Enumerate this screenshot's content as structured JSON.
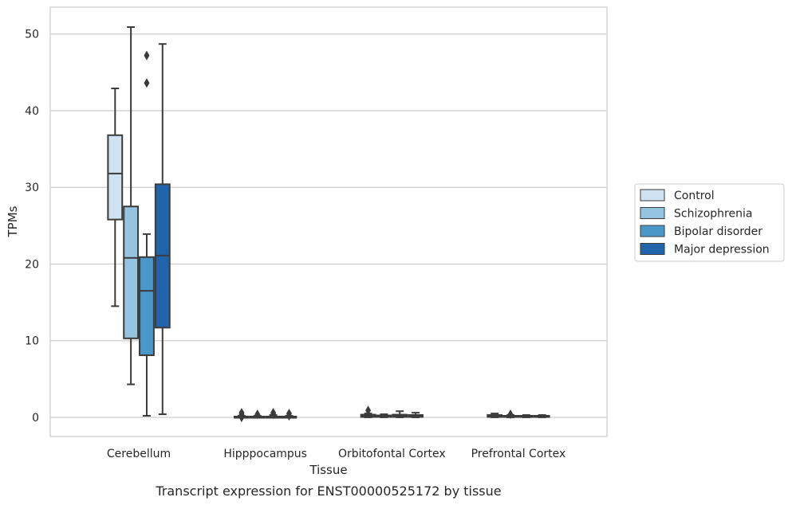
{
  "chart_data": {
    "type": "box",
    "caption": "Transcript expression for ENST00000525172 by tissue",
    "xlabel": "Tissue",
    "ylabel": "TPMs",
    "ylim": [
      -2.5,
      53.5
    ],
    "yticks": [
      0,
      10,
      20,
      30,
      40,
      50
    ],
    "grid": "horizontal",
    "legend_position": "right",
    "categories": [
      "Cerebellum",
      "Hipppocampus",
      "Orbitofontal Cortex",
      "Prefrontal Cortex"
    ],
    "series": [
      {
        "name": "Control",
        "color": "#d0e1f2",
        "boxes": [
          {
            "whislo": 14.5,
            "q1": 25.8,
            "med": 31.8,
            "q3": 36.8,
            "whishi": 42.9,
            "fliers": []
          },
          {
            "whislo": 0.0,
            "q1": 0.0,
            "med": 0.0,
            "q3": 0.1,
            "whishi": 0.2,
            "fliers": [
              0.4,
              0.6,
              0.0
            ]
          },
          {
            "whislo": 0.0,
            "q1": 0.05,
            "med": 0.15,
            "q3": 0.35,
            "whishi": 0.5,
            "fliers": [
              0.9
            ]
          },
          {
            "whislo": 0.0,
            "q1": 0.05,
            "med": 0.15,
            "q3": 0.3,
            "whishi": 0.5,
            "fliers": []
          }
        ]
      },
      {
        "name": "Schizophrenia",
        "color": "#94c4df",
        "boxes": [
          {
            "whislo": 4.3,
            "q1": 10.3,
            "med": 20.8,
            "q3": 27.5,
            "whishi": 50.9,
            "fliers": []
          },
          {
            "whislo": 0.0,
            "q1": 0.0,
            "med": 0.05,
            "q3": 0.1,
            "whishi": 0.2,
            "fliers": [
              0.4
            ]
          },
          {
            "whislo": 0.0,
            "q1": 0.05,
            "med": 0.1,
            "q3": 0.25,
            "whishi": 0.4,
            "fliers": []
          },
          {
            "whislo": 0.0,
            "q1": 0.05,
            "med": 0.1,
            "q3": 0.2,
            "whishi": 0.3,
            "fliers": [
              0.4
            ]
          }
        ]
      },
      {
        "name": "Bipolar disorder",
        "color": "#4a98c9",
        "boxes": [
          {
            "whislo": 0.2,
            "q1": 8.1,
            "med": 16.5,
            "q3": 20.9,
            "whishi": 23.9,
            "fliers": [
              43.6,
              47.2
            ]
          },
          {
            "whislo": 0.0,
            "q1": 0.0,
            "med": 0.05,
            "q3": 0.1,
            "whishi": 0.3,
            "fliers": [
              0.6,
              0.4
            ]
          },
          {
            "whislo": 0.0,
            "q1": 0.05,
            "med": 0.15,
            "q3": 0.35,
            "whishi": 0.8,
            "fliers": []
          },
          {
            "whislo": 0.0,
            "q1": 0.05,
            "med": 0.1,
            "q3": 0.2,
            "whishi": 0.3,
            "fliers": []
          }
        ]
      },
      {
        "name": "Major depression",
        "color": "#2164ab",
        "boxes": [
          {
            "whislo": 0.4,
            "q1": 11.7,
            "med": 21.1,
            "q3": 30.4,
            "whishi": 48.7,
            "fliers": []
          },
          {
            "whislo": 0.0,
            "q1": 0.0,
            "med": 0.05,
            "q3": 0.1,
            "whishi": 0.2,
            "fliers": [
              0.5,
              0.2
            ]
          },
          {
            "whislo": 0.0,
            "q1": 0.05,
            "med": 0.1,
            "q3": 0.3,
            "whishi": 0.6,
            "fliers": []
          },
          {
            "whislo": 0.0,
            "q1": 0.05,
            "med": 0.1,
            "q3": 0.2,
            "whishi": 0.3,
            "fliers": []
          }
        ]
      }
    ]
  }
}
